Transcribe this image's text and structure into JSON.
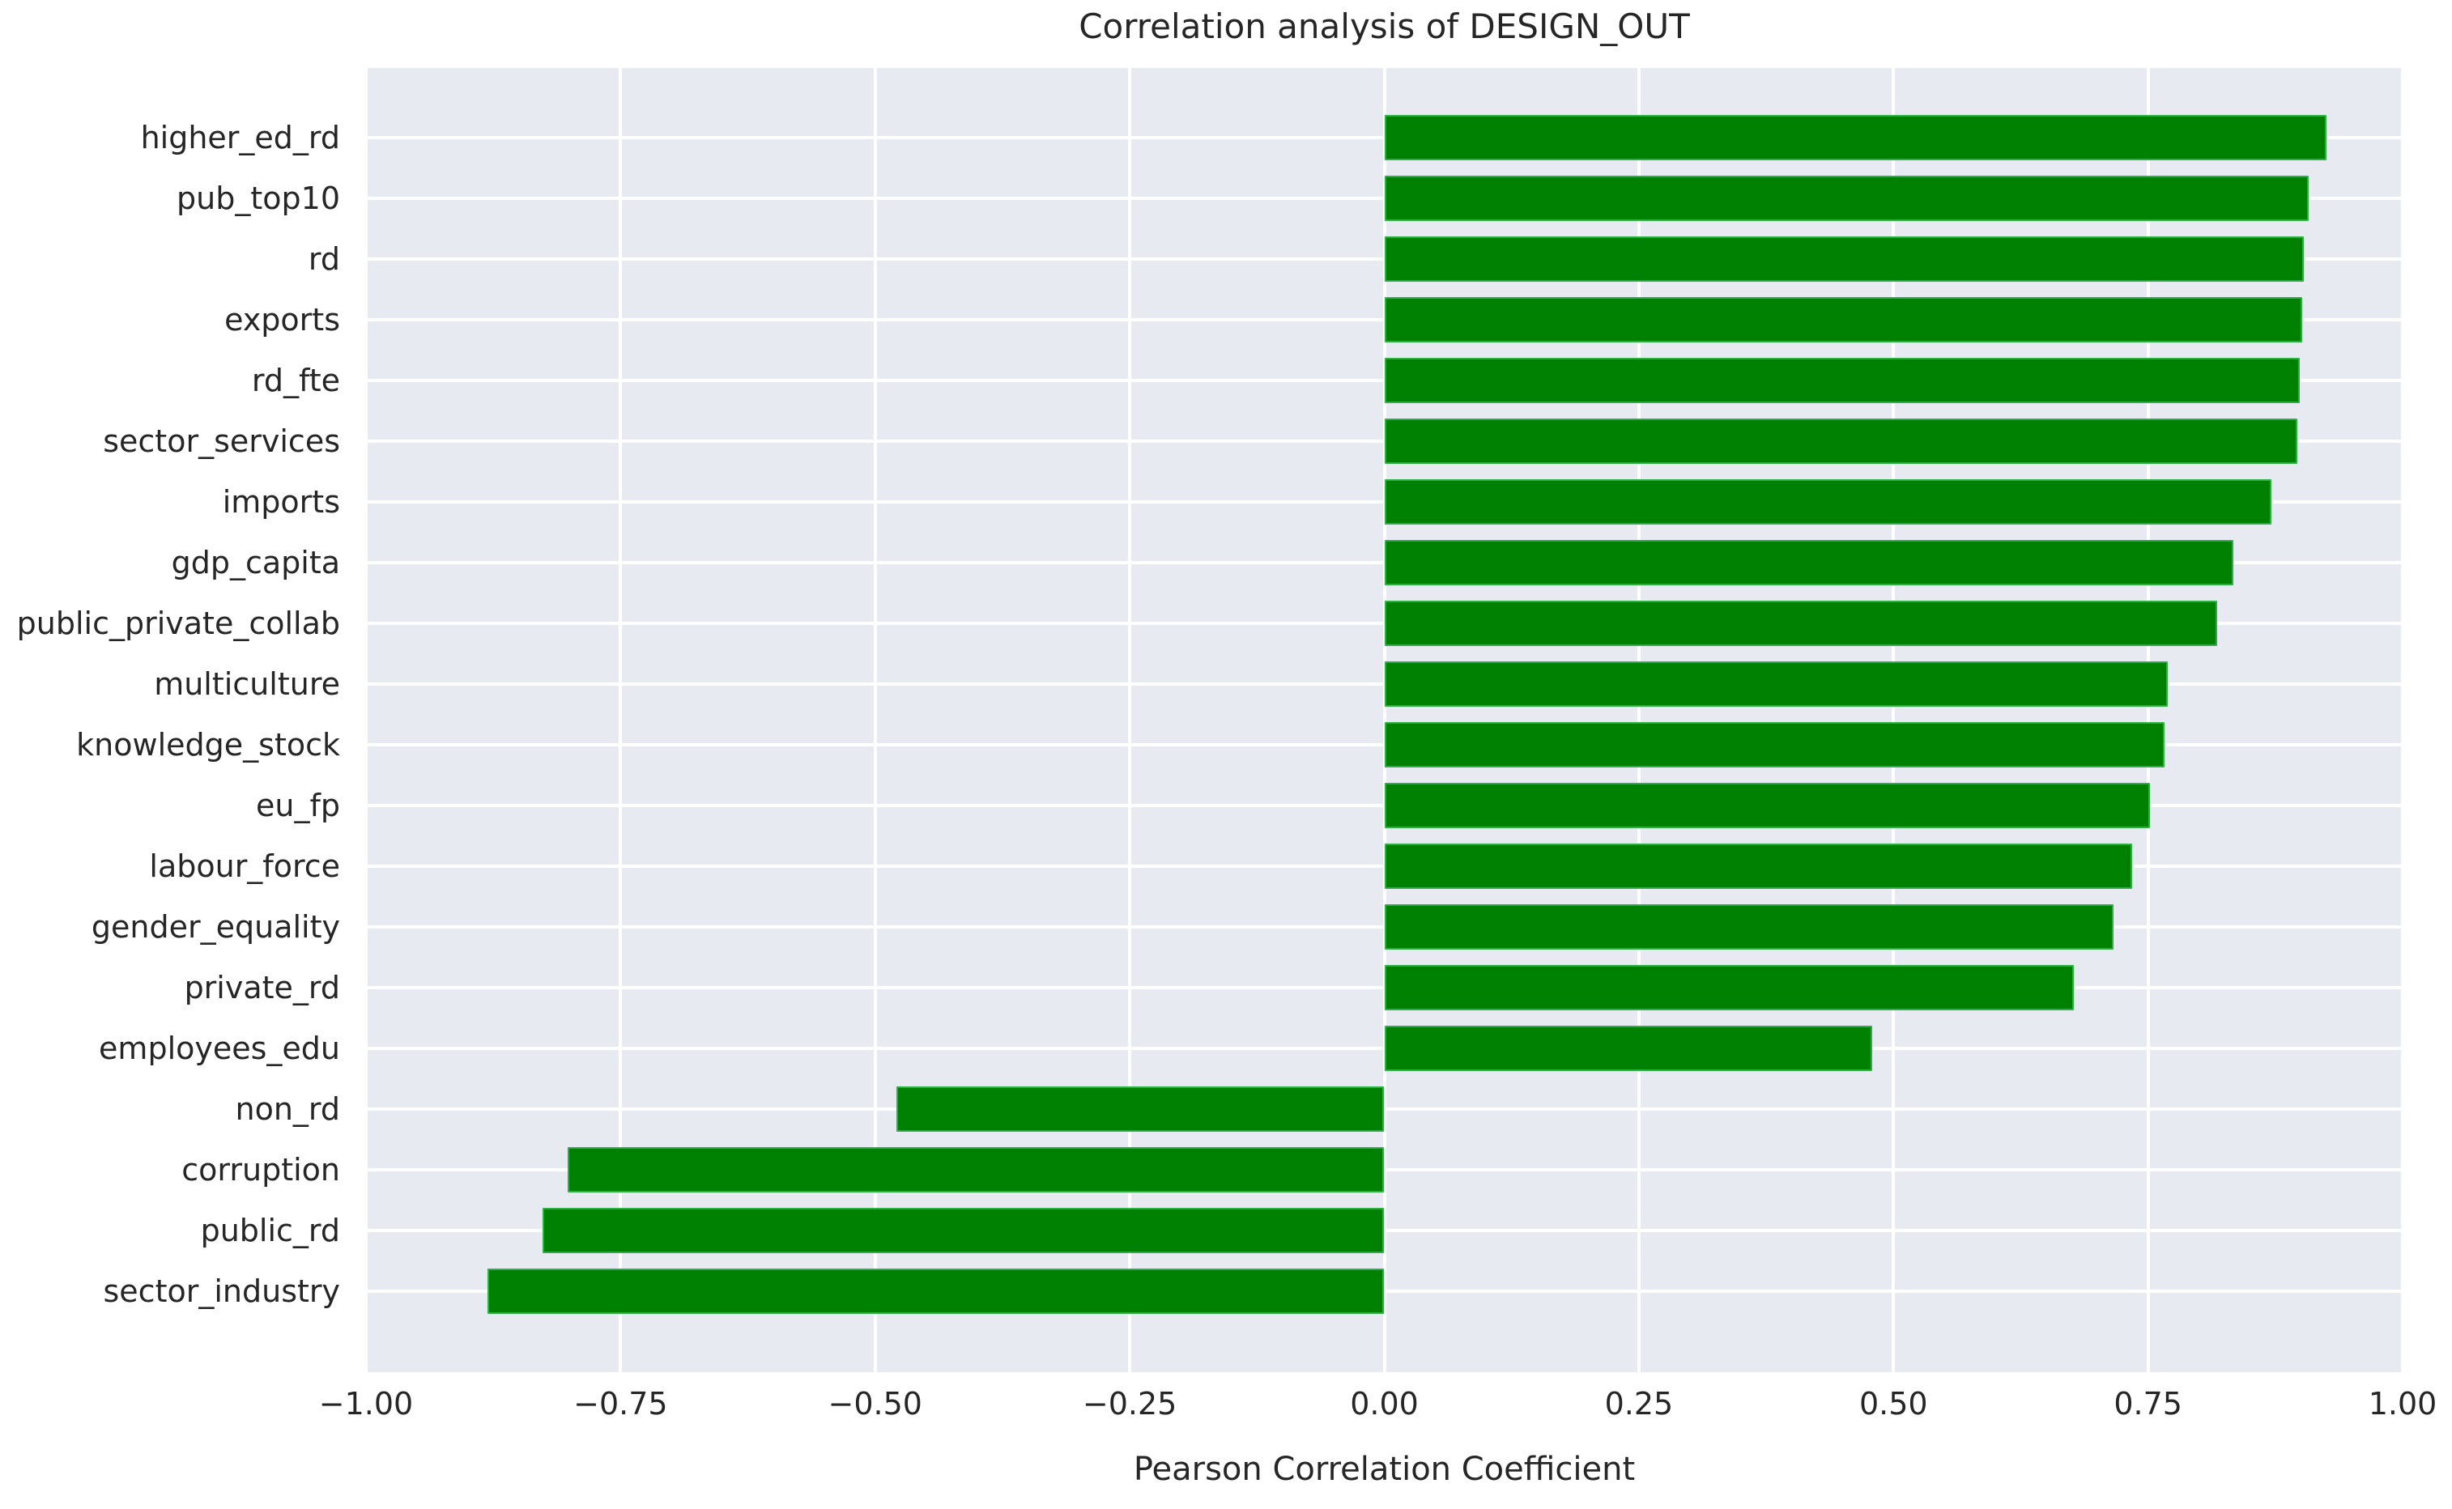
{
  "chart_data": {
    "type": "bar",
    "orientation": "horizontal",
    "title": "Correlation analysis of DESIGN_OUT",
    "xlabel": "Pearson Correlation Coefficient",
    "ylabel": "",
    "categories": [
      "higher_ed_rd",
      "pub_top10",
      "rd",
      "exports",
      "rd_fte",
      "sector_services",
      "imports",
      "gdp_capita",
      "public_private_collab",
      "multiculture",
      "knowledge_stock",
      "eu_fp",
      "labour_force",
      "gender_equality",
      "private_rd",
      "employees_edu",
      "non_rd",
      "corruption",
      "public_rd",
      "sector_industry"
    ],
    "values": [
      0.925,
      0.908,
      0.903,
      0.901,
      0.899,
      0.897,
      0.871,
      0.834,
      0.818,
      0.769,
      0.766,
      0.752,
      0.734,
      0.716,
      0.677,
      0.479,
      -0.479,
      -0.802,
      -0.827,
      -0.881
    ],
    "xlim": [
      -1.0,
      1.0
    ],
    "x_tick_values": [
      -1.0,
      -0.75,
      -0.5,
      -0.25,
      0.0,
      0.25,
      0.5,
      0.75,
      1.0
    ],
    "x_tick_labels": [
      "−1.00",
      "−0.75",
      "−0.50",
      "−0.25",
      "0.00",
      "0.25",
      "0.50",
      "0.75",
      "1.00"
    ],
    "grid": true,
    "legend": false,
    "colors": {
      "bar_fill": "#008000",
      "bar_edge": "#2fae47",
      "plot_background": "#e8eaf2",
      "grid_line": "#ffffff",
      "text": "#262626",
      "figure_background": "#ffffff"
    }
  }
}
